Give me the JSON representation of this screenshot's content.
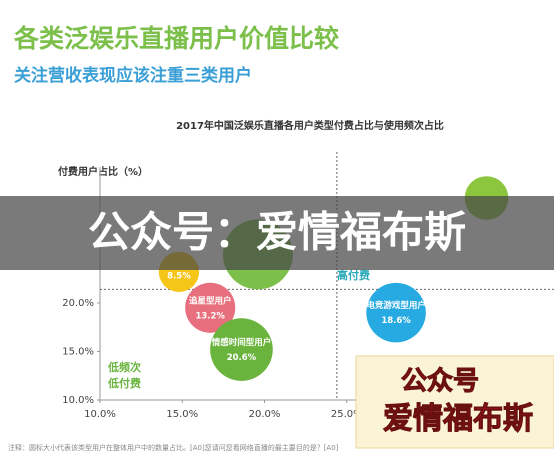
{
  "header": {
    "title": "各类泛娱乐直播用户价值比较",
    "subtitle": "关注营收表现应该注重三类用户"
  },
  "chart_data": {
    "type": "bubble",
    "title": "2017年中国泛娱乐直播各用户类型付费占比与使用频次占比",
    "ylabel": "付费用户占比（%）",
    "labels": [
      null,
      null,
      "追星型用户",
      "情感时间型用户",
      "电竞游戏型用户",
      null
    ],
    "x": [
      14.8,
      19.6,
      16.7,
      18.6,
      28.0,
      33.5
    ],
    "values": [
      23.2,
      25.0,
      19.5,
      15.2,
      19.0,
      30.8
    ],
    "sizes": [
      8.5,
      25.7,
      13.2,
      20.6,
      18.6,
      10.0
    ],
    "value_labels": [
      "8.5%",
      null,
      "13.2%",
      "20.6%",
      "18.6%",
      null
    ],
    "colors": [
      "#f5c518",
      "#7cc04b",
      "#e8707e",
      "#6ab43e",
      "#27aae1",
      "#8cc63f"
    ],
    "xlim": [
      10,
      37.6
    ],
    "ylim": [
      10,
      34
    ],
    "xticks": [
      {
        "value": 10,
        "label": "10.0%"
      },
      {
        "value": 15,
        "label": "15.0%"
      },
      {
        "value": 20,
        "label": "20.0%"
      },
      {
        "value": 25,
        "label": "25.0%"
      }
    ],
    "yticks": [
      {
        "value": 10,
        "label": "10.0%"
      },
      {
        "value": 15,
        "label": "15.0%"
      },
      {
        "value": 20,
        "label": "20.0%"
      }
    ],
    "xref": 24.4,
    "yref": 21.4,
    "annotations": [
      "低频次",
      "低付费",
      "高付费"
    ],
    "footnote": "注释：圆标大小代表该类型用户在整体用户中的数量占比。[A0]您请问您看网络直播的最主要目的是？[A0]"
  },
  "watermark": {
    "banner": "公众号：爱情福布斯",
    "box_line1": "公众号",
    "box_line2": "爱情福布斯"
  }
}
